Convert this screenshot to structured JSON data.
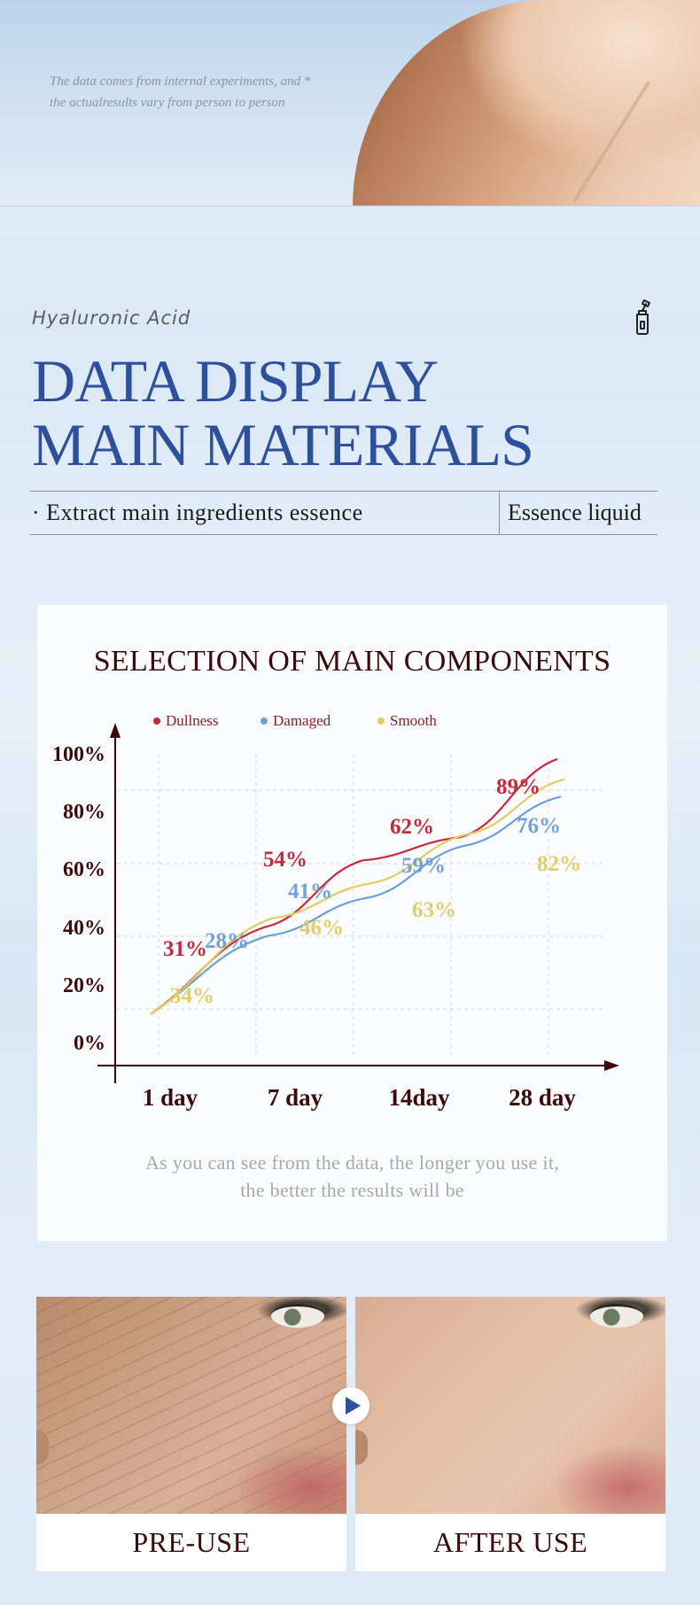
{
  "hero": {
    "note_line1": "The data comes from internal experiments, and *",
    "note_line2": "the actualresults vary from person to person"
  },
  "heading": {
    "brand": "Hyaluronic Acid",
    "title_line1": "DATA DISPLAY",
    "title_line2": "MAIN MATERIALS",
    "bar_left": "· Extract main ingredients essence",
    "bar_right": "Essence liquid",
    "icon": "dropper-bottle-icon"
  },
  "colors": {
    "title_blue": "#2d4f9c",
    "dark_red": "#3d0a0c",
    "dullness": "#c8283a",
    "damaged": "#6a9fd6",
    "smooth": "#e0cc64"
  },
  "chart_data": {
    "type": "line",
    "title": "SELECTION OF MAIN COMPONENTS",
    "categories": [
      "1 day",
      "7 day",
      "14day",
      "28 day"
    ],
    "y_ticks": [
      "100%",
      "80%",
      "60%",
      "40%",
      "20%",
      "0%"
    ],
    "ylim": [
      0,
      100
    ],
    "grid": true,
    "legend_position": "top-left",
    "series": [
      {
        "name": "Dullness",
        "color": "#c8283a",
        "values": [
          31,
          54,
          62,
          89
        ],
        "labels": [
          "31%",
          "54%",
          "62%",
          "89%"
        ]
      },
      {
        "name": "Damaged",
        "color": "#6a9fd6",
        "values": [
          28,
          41,
          59,
          76
        ],
        "labels": [
          "28%",
          "41%",
          "59%",
          "76%"
        ]
      },
      {
        "name": "Smooth",
        "color": "#e0cc64",
        "values": [
          34,
          46,
          63,
          82
        ],
        "labels": [
          "34%",
          "46%",
          "63%",
          "82%"
        ]
      }
    ]
  },
  "caption": {
    "line1": "As you can see from the data, the longer you use it,",
    "line2": "the better the results will be"
  },
  "compare": {
    "pre_label": "PRE-USE",
    "post_label": "AFTER USE",
    "play_icon": "play-icon"
  }
}
